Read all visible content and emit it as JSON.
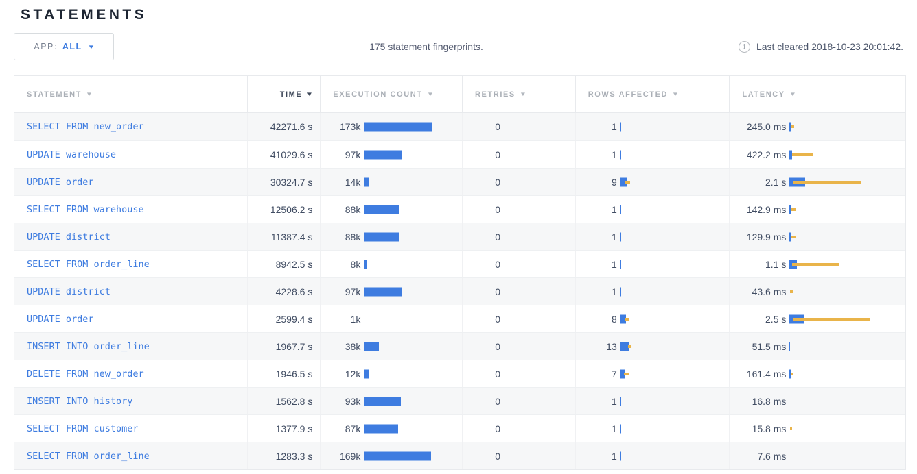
{
  "page": {
    "title": "STATEMENTS"
  },
  "toolbar": {
    "app_filter_label": "APP:",
    "app_filter_value": "ALL",
    "summary": "175 statement fingerprints.",
    "last_cleared": "Last cleared 2018-10-23 20:01:42."
  },
  "colors": {
    "bar_blue": "#3E7CE0",
    "bar_yellow": "#E9B44A",
    "link_blue": "#3E7CE0",
    "sorted_header": "#3d4758",
    "header_gray": "#aaafb6"
  },
  "table": {
    "columns": [
      {
        "key": "statement",
        "label": "STATEMENT",
        "sorted": false
      },
      {
        "key": "time",
        "label": "TIME",
        "sorted": true
      },
      {
        "key": "execution-count",
        "label": "EXECUTION COUNT",
        "sorted": false
      },
      {
        "key": "retries",
        "label": "RETRIES",
        "sorted": false
      },
      {
        "key": "rows-affected",
        "label": "ROWS AFFECTED",
        "sorted": false
      },
      {
        "key": "latency",
        "label": "LATENCY",
        "sorted": false
      }
    ],
    "rows": [
      {
        "statement": "SELECT FROM new_order",
        "time": "42271.6 s",
        "count": "173k",
        "count_bar": 100,
        "retries": "0",
        "rows": "1",
        "rows_bar": 1,
        "rows_dev": 0,
        "latency": "245.0 ms",
        "lat_bar": 3,
        "lat_dev": 5,
        "lat_dev_off": 2
      },
      {
        "statement": "UPDATE warehouse",
        "time": "41029.6 s",
        "count": "97k",
        "count_bar": 56,
        "retries": "0",
        "rows": "1",
        "rows_bar": 1,
        "rows_dev": 0,
        "latency": "422.2 ms",
        "lat_bar": 4,
        "lat_dev": 30,
        "lat_dev_off": 4
      },
      {
        "statement": "UPDATE order",
        "time": "30324.7 s",
        "count": "14k",
        "count_bar": 8,
        "retries": "0",
        "rows": "9",
        "rows_bar": 9,
        "rows_dev": 7,
        "latency": "2.1 s",
        "lat_bar": 23,
        "lat_dev": 100,
        "lat_dev_off": 5
      },
      {
        "statement": "SELECT FROM warehouse",
        "time": "12506.2 s",
        "count": "88k",
        "count_bar": 51,
        "retries": "0",
        "rows": "1",
        "rows_bar": 1,
        "rows_dev": 0,
        "latency": "142.9 ms",
        "lat_bar": 2,
        "lat_dev": 8,
        "lat_dev_off": 2
      },
      {
        "statement": "UPDATE district",
        "time": "11387.4 s",
        "count": "88k",
        "count_bar": 51,
        "retries": "0",
        "rows": "1",
        "rows_bar": 1,
        "rows_dev": 0,
        "latency": "129.9 ms",
        "lat_bar": 2,
        "lat_dev": 8,
        "lat_dev_off": 2
      },
      {
        "statement": "SELECT FROM order_line",
        "time": "8942.5 s",
        "count": "8k",
        "count_bar": 5,
        "retries": "0",
        "rows": "1",
        "rows_bar": 1,
        "rows_dev": 0,
        "latency": "1.1 s",
        "lat_bar": 11,
        "lat_dev": 68,
        "lat_dev_off": 4
      },
      {
        "statement": "UPDATE district",
        "time": "4228.6 s",
        "count": "97k",
        "count_bar": 56,
        "retries": "0",
        "rows": "1",
        "rows_bar": 1,
        "rows_dev": 0,
        "latency": "43.6 ms",
        "lat_bar": 0,
        "lat_dev": 5,
        "lat_dev_off": 1
      },
      {
        "statement": "UPDATE order",
        "time": "2599.4 s",
        "count": "1k",
        "count_bar": 1,
        "retries": "0",
        "rows": "8",
        "rows_bar": 8,
        "rows_dev": 7,
        "latency": "2.5 s",
        "lat_bar": 22,
        "lat_dev": 112,
        "lat_dev_off": 5
      },
      {
        "statement": "INSERT INTO order_line",
        "time": "1967.7 s",
        "count": "38k",
        "count_bar": 22,
        "retries": "0",
        "rows": "13",
        "rows_bar": 13,
        "rows_dev": 4,
        "latency": "51.5 ms",
        "lat_bar": 1,
        "lat_dev": 0,
        "lat_dev_off": 0
      },
      {
        "statement": "DELETE FROM new_order",
        "time": "1946.5 s",
        "count": "12k",
        "count_bar": 7,
        "retries": "0",
        "rows": "7",
        "rows_bar": 7,
        "rows_dev": 8,
        "latency": "161.4 ms",
        "lat_bar": 2,
        "lat_dev": 3,
        "lat_dev_off": 2
      },
      {
        "statement": "INSERT INTO history",
        "time": "1562.8 s",
        "count": "93k",
        "count_bar": 54,
        "retries": "0",
        "rows": "1",
        "rows_bar": 1,
        "rows_dev": 0,
        "latency": "16.8 ms",
        "lat_bar": 0,
        "lat_dev": 0,
        "lat_dev_off": 0
      },
      {
        "statement": "SELECT FROM customer",
        "time": "1377.9 s",
        "count": "87k",
        "count_bar": 50,
        "retries": "0",
        "rows": "1",
        "rows_bar": 1,
        "rows_dev": 0,
        "latency": "15.8 ms",
        "lat_bar": 0,
        "lat_dev": 3,
        "lat_dev_off": 1
      },
      {
        "statement": "SELECT FROM order_line",
        "time": "1283.3 s",
        "count": "169k",
        "count_bar": 98,
        "retries": "0",
        "rows": "1",
        "rows_bar": 1,
        "rows_dev": 0,
        "latency": "7.6 ms",
        "lat_bar": 0,
        "lat_dev": 0,
        "lat_dev_off": 0
      }
    ]
  }
}
